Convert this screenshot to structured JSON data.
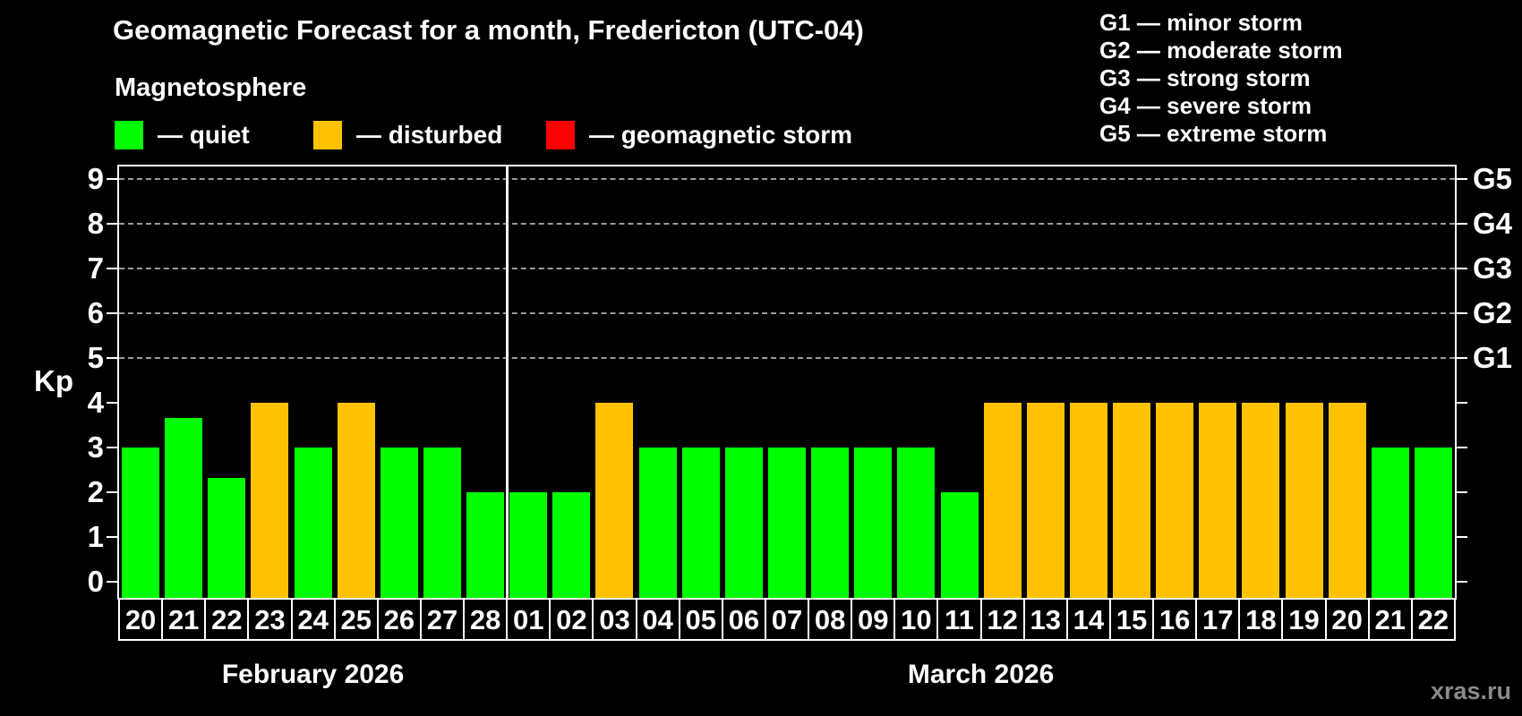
{
  "header": {
    "title": "Geomagnetic Forecast for a month, Fredericton (UTC-04)",
    "subtitle": "Magnetosphere"
  },
  "colors": {
    "quiet": "#00ff00",
    "disturbed": "#ffc200",
    "storm": "#ff0000",
    "background": "#000000",
    "text": "#ffffff",
    "grid": "#9a9a9a",
    "watermark": "#8a8a8a"
  },
  "legend": [
    {
      "status": "quiet",
      "label": "— quiet"
    },
    {
      "status": "disturbed",
      "label": "— disturbed"
    },
    {
      "status": "storm",
      "label": "— geomagnetic storm"
    }
  ],
  "g_legend": [
    "G1 — minor storm",
    "G2 — moderate storm",
    "G3 — strong storm",
    "G4 — severe storm",
    "G5 — extreme storm"
  ],
  "axes": {
    "y_label": "Kp",
    "y_ticks": [
      0,
      1,
      2,
      3,
      4,
      5,
      6,
      7,
      8,
      9
    ],
    "right_scale": [
      {
        "value": 5,
        "label": "G1"
      },
      {
        "value": 6,
        "label": "G2"
      },
      {
        "value": 7,
        "label": "G3"
      },
      {
        "value": 8,
        "label": "G4"
      },
      {
        "value": 9,
        "label": "G5"
      }
    ],
    "gridlines": [
      5,
      6,
      7,
      8,
      9
    ]
  },
  "months": [
    {
      "label": "February 2026",
      "start": 0,
      "count": 9
    },
    {
      "label": "March 2026",
      "start": 9,
      "count": 22
    }
  ],
  "chart_data": {
    "type": "bar",
    "title": "Geomagnetic Forecast for a month, Fredericton (UTC-04)",
    "ylabel": "Kp",
    "ylim": [
      0,
      9
    ],
    "legend_position": "top",
    "grid": "dashed at 5-9 only",
    "bars": [
      {
        "month": "February 2026",
        "day": "20",
        "kp": 3,
        "status": "quiet"
      },
      {
        "month": "February 2026",
        "day": "21",
        "kp": 3.67,
        "status": "quiet"
      },
      {
        "month": "February 2026",
        "day": "22",
        "kp": 2.33,
        "status": "quiet"
      },
      {
        "month": "February 2026",
        "day": "23",
        "kp": 4,
        "status": "disturbed"
      },
      {
        "month": "February 2026",
        "day": "24",
        "kp": 3,
        "status": "quiet"
      },
      {
        "month": "February 2026",
        "day": "25",
        "kp": 4,
        "status": "disturbed"
      },
      {
        "month": "February 2026",
        "day": "26",
        "kp": 3,
        "status": "quiet"
      },
      {
        "month": "February 2026",
        "day": "27",
        "kp": 3,
        "status": "quiet"
      },
      {
        "month": "February 2026",
        "day": "28",
        "kp": 2,
        "status": "quiet"
      },
      {
        "month": "March 2026",
        "day": "01",
        "kp": 2,
        "status": "quiet"
      },
      {
        "month": "March 2026",
        "day": "02",
        "kp": 2,
        "status": "quiet"
      },
      {
        "month": "March 2026",
        "day": "03",
        "kp": 4,
        "status": "disturbed"
      },
      {
        "month": "March 2026",
        "day": "04",
        "kp": 3,
        "status": "quiet"
      },
      {
        "month": "March 2026",
        "day": "05",
        "kp": 3,
        "status": "quiet"
      },
      {
        "month": "March 2026",
        "day": "06",
        "kp": 3,
        "status": "quiet"
      },
      {
        "month": "March 2026",
        "day": "07",
        "kp": 3,
        "status": "quiet"
      },
      {
        "month": "March 2026",
        "day": "08",
        "kp": 3,
        "status": "quiet"
      },
      {
        "month": "March 2026",
        "day": "09",
        "kp": 3,
        "status": "quiet"
      },
      {
        "month": "March 2026",
        "day": "10",
        "kp": 3,
        "status": "quiet"
      },
      {
        "month": "March 2026",
        "day": "11",
        "kp": 2,
        "status": "quiet"
      },
      {
        "month": "March 2026",
        "day": "12",
        "kp": 4,
        "status": "disturbed"
      },
      {
        "month": "March 2026",
        "day": "13",
        "kp": 4,
        "status": "disturbed"
      },
      {
        "month": "March 2026",
        "day": "14",
        "kp": 4,
        "status": "disturbed"
      },
      {
        "month": "March 2026",
        "day": "15",
        "kp": 4,
        "status": "disturbed"
      },
      {
        "month": "March 2026",
        "day": "16",
        "kp": 4,
        "status": "disturbed"
      },
      {
        "month": "March 2026",
        "day": "17",
        "kp": 4,
        "status": "disturbed"
      },
      {
        "month": "March 2026",
        "day": "18",
        "kp": 4,
        "status": "disturbed"
      },
      {
        "month": "March 2026",
        "day": "19",
        "kp": 4,
        "status": "disturbed"
      },
      {
        "month": "March 2026",
        "day": "20",
        "kp": 4,
        "status": "disturbed"
      },
      {
        "month": "March 2026",
        "day": "21",
        "kp": 3,
        "status": "quiet"
      },
      {
        "month": "March 2026",
        "day": "22",
        "kp": 3,
        "status": "quiet"
      }
    ]
  },
  "watermark": "xras.ru"
}
